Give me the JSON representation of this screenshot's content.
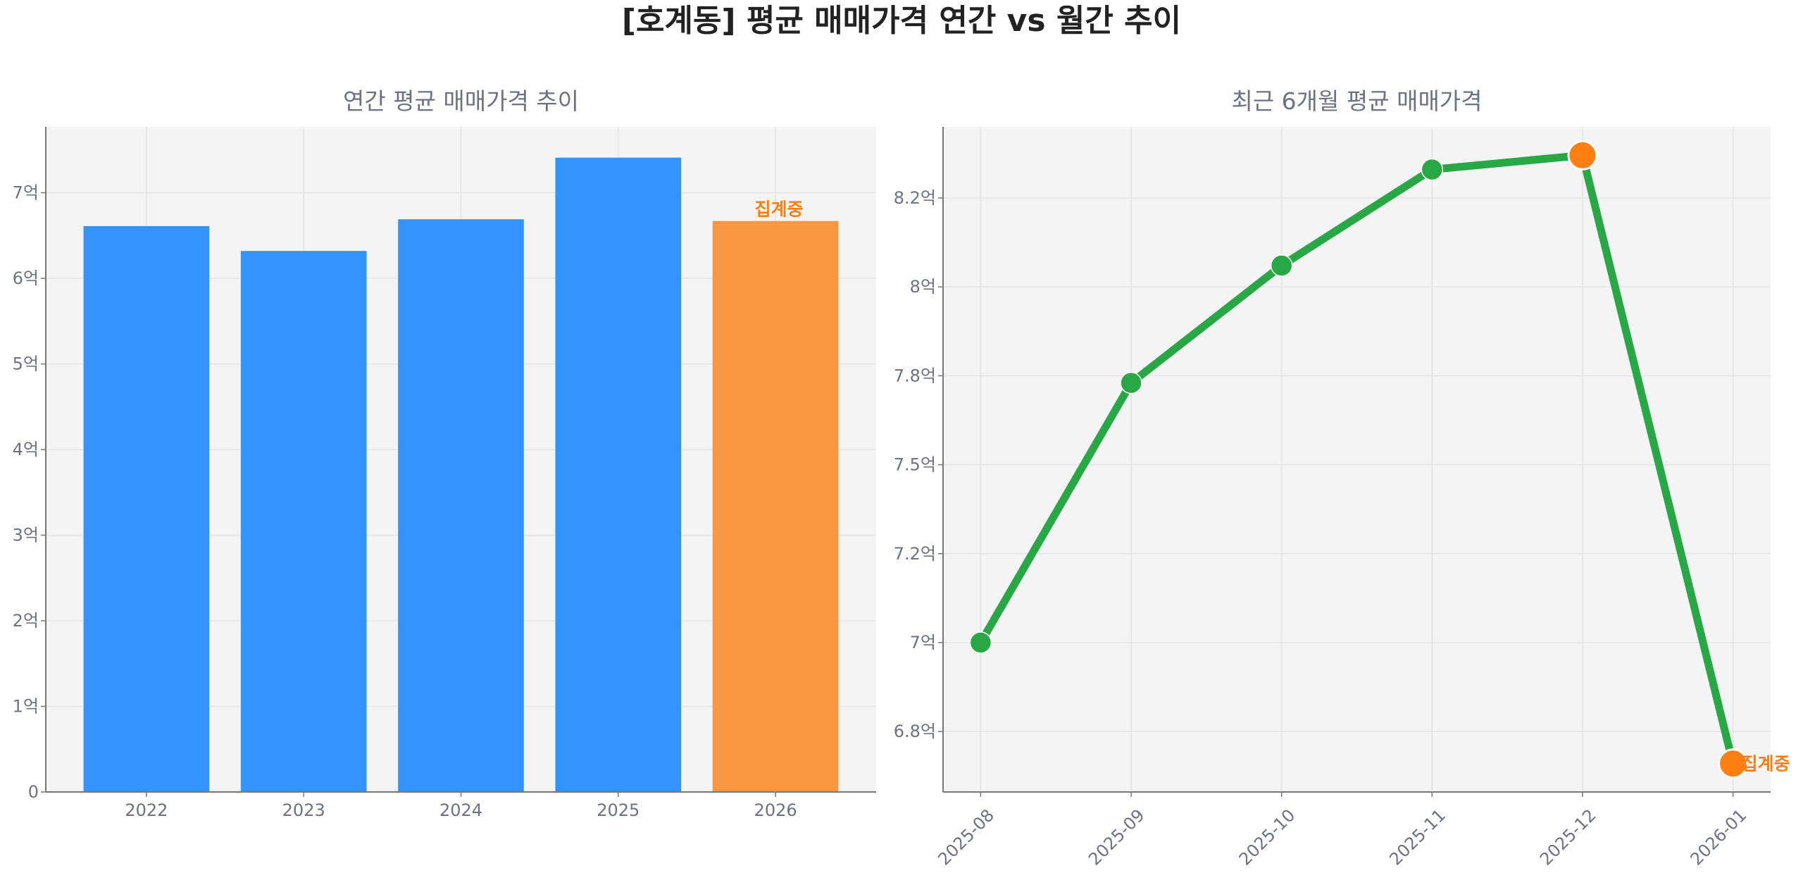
{
  "title": "[호계동] 평균 매매가격 연간 vs 월간 추이",
  "colors": {
    "bar": "#3193fb",
    "bar_current": "#f99740",
    "line": "#28a745",
    "marker_highlight": "#fd7f14",
    "annotation": "#fd7f14",
    "axes_bg": "#f4f4f4",
    "text": "#6b7280",
    "title": "#222222"
  },
  "chart_data": [
    {
      "type": "bar",
      "title": "연간 평균 매매가격 추이",
      "categories": [
        "2022",
        "2023",
        "2024",
        "2025",
        "2026"
      ],
      "values": [
        6.61,
        6.32,
        6.69,
        7.41,
        6.67
      ],
      "unit": "억",
      "highlight_index": 4,
      "annotation": {
        "index": 4,
        "text": "집계중"
      },
      "ylim": [
        0,
        7.77
      ],
      "yticks": [
        {
          "value": 0,
          "label": "0"
        },
        {
          "value": 1,
          "label": "1억"
        },
        {
          "value": 2,
          "label": "2억"
        },
        {
          "value": 3,
          "label": "3억"
        },
        {
          "value": 4,
          "label": "4억"
        },
        {
          "value": 5,
          "label": "5억"
        },
        {
          "value": 6,
          "label": "6억"
        },
        {
          "value": 7,
          "label": "7억"
        }
      ],
      "grid": true
    },
    {
      "type": "line",
      "title": "최근 6개월 평균 매매가격",
      "x": [
        "2025-08",
        "2025-09",
        "2025-10",
        "2025-11",
        "2025-12",
        "2026-01"
      ],
      "values": [
        7.0,
        7.73,
        8.06,
        8.33,
        8.37,
        6.66
      ],
      "unit": "억",
      "highlight_indices": [
        4,
        5
      ],
      "annotation": {
        "index": 5,
        "text": "집계중"
      },
      "ylim": [
        6.58,
        8.45
      ],
      "yticks": [
        {
          "value": 6.75,
          "label": "6.8억"
        },
        {
          "value": 7.0,
          "label": "7억"
        },
        {
          "value": 7.25,
          "label": "7.2억"
        },
        {
          "value": 7.5,
          "label": "7.5억"
        },
        {
          "value": 7.75,
          "label": "7.8억"
        },
        {
          "value": 8.0,
          "label": "8억"
        },
        {
          "value": 8.25,
          "label": "8.2억"
        }
      ],
      "xtick_rotation": 45,
      "grid": true
    }
  ]
}
